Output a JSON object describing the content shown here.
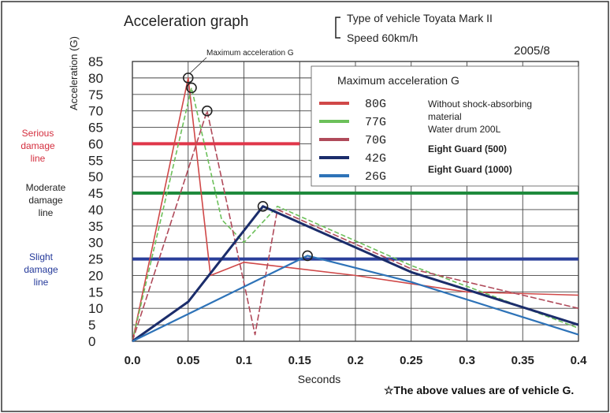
{
  "chart_data": {
    "type": "line",
    "title": "Acceleration graph",
    "vehicle_info": {
      "type_line": "Type of vehicle  Toyata Mark II",
      "speed_line": "Speed  60km/h"
    },
    "date": "2005/8",
    "ylabel": "Acceleration (G)",
    "xlabel": "Seconds",
    "xlim": [
      0,
      0.4
    ],
    "ylim": [
      0,
      85
    ],
    "x_ticks": [
      "0.0",
      "0.05",
      "0.1",
      "0.15",
      "0.2",
      "0.25",
      "0.3",
      "0.35",
      "0.4"
    ],
    "y_ticks": [
      "0",
      "5",
      "10",
      "15",
      "20",
      "25",
      "30",
      "35",
      "40",
      "45",
      "50",
      "55",
      "60",
      "65",
      "70",
      "75",
      "80",
      "85"
    ],
    "peak_annotation": "Maximum acceleration G",
    "legend_title": "Maximum acceleration G",
    "legend_placement": "top-right",
    "grid": true,
    "series": [
      {
        "name": "Without shock-absorbing material",
        "label": "80G",
        "color": "#d04848",
        "points": [
          [
            0,
            0
          ],
          [
            0.05,
            80
          ],
          [
            0.07,
            20
          ],
          [
            0.1,
            24
          ],
          [
            0.2,
            20
          ],
          [
            0.3,
            15
          ],
          [
            0.4,
            14
          ]
        ]
      },
      {
        "name": "Water drum  200L",
        "label": "77G",
        "color": "#6cc05a",
        "points": [
          [
            0,
            0
          ],
          [
            0.053,
            77
          ],
          [
            0.08,
            37
          ],
          [
            0.1,
            30
          ],
          [
            0.13,
            41
          ],
          [
            0.25,
            23
          ],
          [
            0.4,
            4
          ]
        ]
      },
      {
        "name": "Eight Guard (500)",
        "label": "70G",
        "color": "#b04a5a",
        "points": [
          [
            0,
            0
          ],
          [
            0.067,
            70
          ],
          [
            0.11,
            2
          ],
          [
            0.13,
            40
          ],
          [
            0.25,
            22
          ],
          [
            0.4,
            10
          ]
        ]
      },
      {
        "name": "Eight Guard (500)",
        "label": "42G",
        "color": "#1b2d6b",
        "points": [
          [
            0,
            0
          ],
          [
            0.05,
            12
          ],
          [
            0.117,
            41
          ],
          [
            0.25,
            21
          ],
          [
            0.4,
            5
          ]
        ]
      },
      {
        "name": "Eight Guard (1000)",
        "label": "26G",
        "color": "#2e73b8",
        "points": [
          [
            0,
            0
          ],
          [
            0.157,
            26
          ],
          [
            0.25,
            18
          ],
          [
            0.4,
            2
          ]
        ]
      }
    ],
    "damage_lines": [
      {
        "label": "Serious damage line",
        "value": 60,
        "color": "#e0364a"
      },
      {
        "label": "Moderate damage line",
        "value": 45,
        "color": "#1e8a3c"
      },
      {
        "label": "Slight damage line",
        "value": 25,
        "color": "#2a3f9a"
      }
    ],
    "footnote": "☆The above values are of vehicle G."
  }
}
